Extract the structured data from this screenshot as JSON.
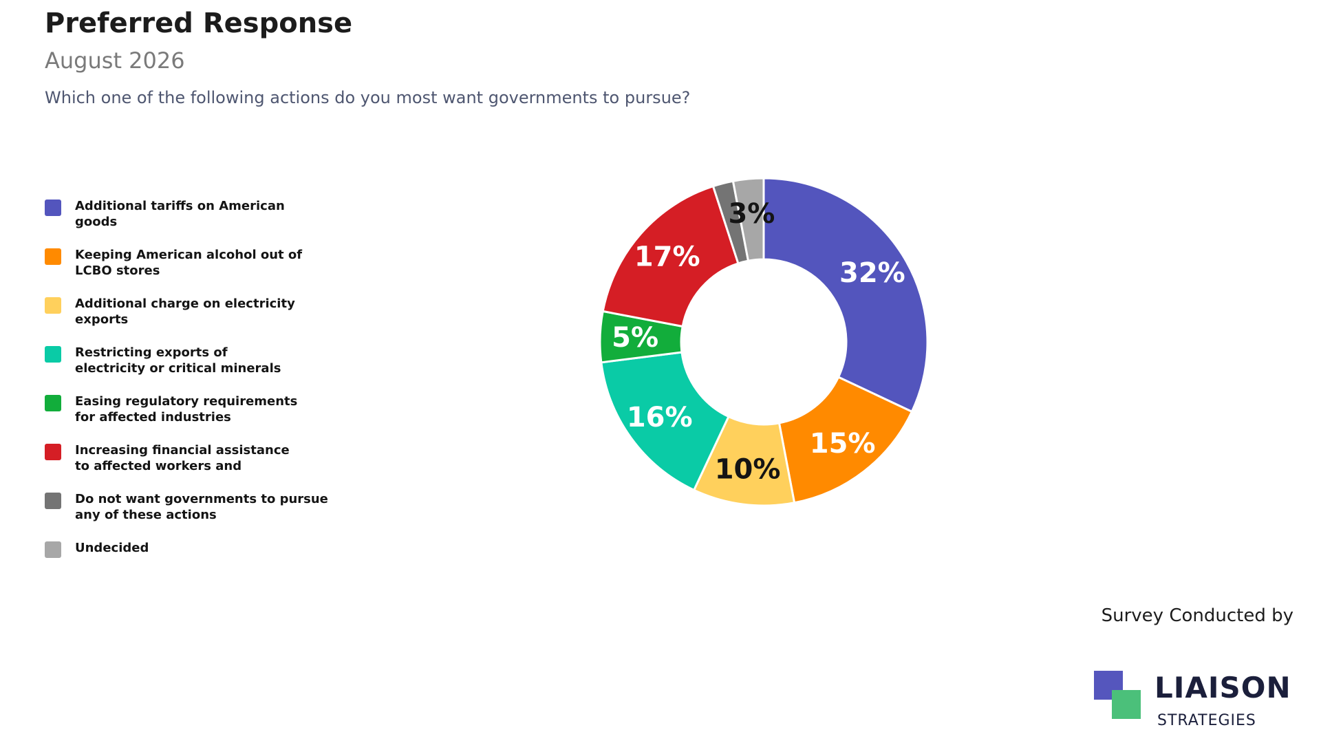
{
  "header": {
    "title": "Preferred Response",
    "subtitle": "August 2026",
    "question": "Which one of the following actions do you most want governments to pursue?"
  },
  "chart_data": {
    "type": "pie",
    "donut": true,
    "legend_position": "left",
    "categories": [
      "Additional tariffs on American goods",
      "Keeping American alcohol out of LCBO stores",
      "Additional charge on electricity exports",
      "Restricting exports of electricity or critical minerals",
      "Easing regulatory requirements for affected industries",
      "Increasing financial assistance to affected workers and",
      "Do not want governments to pursue any of these actions",
      "Undecided"
    ],
    "legend_labels": [
      "Additional tariffs on American\ngoods",
      "Keeping American alcohol out of\nLCBO stores",
      "Additional charge on electricity\nexports",
      "Restricting exports of\nelectricity or critical minerals",
      "Easing regulatory requirements\nfor affected industries",
      "Increasing financial assistance\nto affected workers and",
      "Do not want governments to pursue\nany of these actions",
      "Undecided"
    ],
    "values": [
      32,
      15,
      10,
      16,
      5,
      17,
      2,
      3
    ],
    "value_labels": [
      "32%",
      "15%",
      "10%",
      "16%",
      "5%",
      "17%",
      "",
      "3%"
    ],
    "colors": [
      "#5355bd",
      "#ff8a00",
      "#ffd05c",
      "#0acba6",
      "#12ad3b",
      "#d51e25",
      "#747474",
      "#a7a7a7"
    ],
    "label_colors": [
      "#ffffff",
      "#ffffff",
      "#141414",
      "#ffffff",
      "#ffffff",
      "#ffffff",
      "#ffffff",
      "#141414"
    ]
  },
  "footer": {
    "credit": "Survey Conducted by",
    "logo_name": "LIAISON",
    "logo_sub": "STRATEGIES"
  }
}
